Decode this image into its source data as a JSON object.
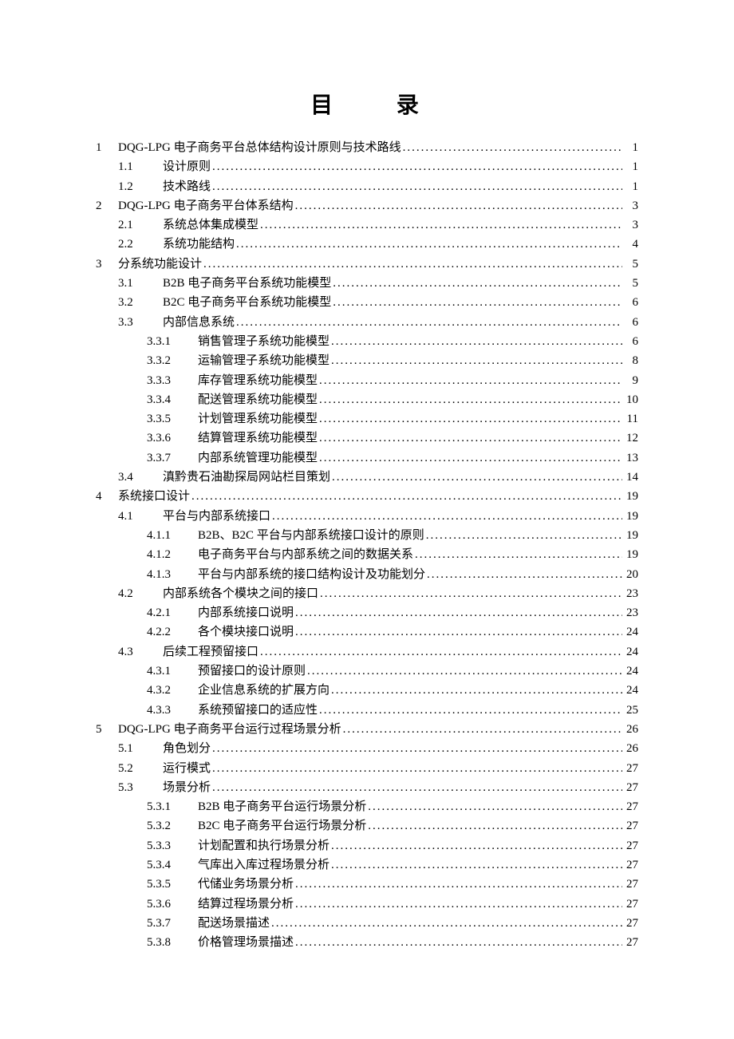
{
  "title": "目  录",
  "entries": [
    {
      "level": 1,
      "chapter": "1",
      "section": "",
      "sub": "",
      "label": "DQG-LPG 电子商务平台总体结构设计原则与技术路线",
      "page": "1"
    },
    {
      "level": 2,
      "chapter": "",
      "section": "1.1",
      "sub": "",
      "label": "设计原则",
      "page": "1"
    },
    {
      "level": 2,
      "chapter": "",
      "section": "1.2",
      "sub": "",
      "label": "技术路线",
      "page": "1"
    },
    {
      "level": 1,
      "chapter": "2",
      "section": "",
      "sub": "",
      "label": "DQG-LPG 电子商务平台体系结构",
      "page": "3"
    },
    {
      "level": 2,
      "chapter": "",
      "section": "2.1",
      "sub": "",
      "label": "系统总体集成模型",
      "page": "3"
    },
    {
      "level": 2,
      "chapter": "",
      "section": "2.2",
      "sub": "",
      "label": "系统功能结构",
      "page": "4"
    },
    {
      "level": 1,
      "chapter": "3",
      "section": "",
      "sub": "",
      "label": "分系统功能设计",
      "page": "5"
    },
    {
      "level": 2,
      "chapter": "",
      "section": "3.1",
      "sub": "",
      "label": "B2B 电子商务平台系统功能模型",
      "page": "5"
    },
    {
      "level": 2,
      "chapter": "",
      "section": "3.2",
      "sub": "",
      "label": "B2C 电子商务平台系统功能模型",
      "page": "6"
    },
    {
      "level": 2,
      "chapter": "",
      "section": "3.3",
      "sub": "",
      "label": "内部信息系统",
      "page": "6"
    },
    {
      "level": 3,
      "chapter": "",
      "section": "",
      "sub": "3.3.1",
      "label": "销售管理子系统功能模型",
      "page": "6"
    },
    {
      "level": 3,
      "chapter": "",
      "section": "",
      "sub": "3.3.2",
      "label": "运输管理子系统功能模型",
      "page": "8"
    },
    {
      "level": 3,
      "chapter": "",
      "section": "",
      "sub": "3.3.3",
      "label": "库存管理系统功能模型",
      "page": "9"
    },
    {
      "level": 3,
      "chapter": "",
      "section": "",
      "sub": "3.3.4",
      "label": "配送管理系统功能模型",
      "page": "10"
    },
    {
      "level": 3,
      "chapter": "",
      "section": "",
      "sub": "3.3.5",
      "label": "计划管理系统功能模型",
      "page": "11"
    },
    {
      "level": 3,
      "chapter": "",
      "section": "",
      "sub": "3.3.6",
      "label": "结算管理系统功能模型",
      "page": "12"
    },
    {
      "level": 3,
      "chapter": "",
      "section": "",
      "sub": "3.3.7",
      "label": "内部系统管理功能模型",
      "page": "13"
    },
    {
      "level": 2,
      "chapter": "",
      "section": "3.4",
      "sub": "",
      "label": "滇黔贵石油勘探局网站栏目策划",
      "page": "14"
    },
    {
      "level": 1,
      "chapter": "4",
      "section": "",
      "sub": "",
      "label": "系统接口设计",
      "page": "19"
    },
    {
      "level": 2,
      "chapter": "",
      "section": "4.1",
      "sub": "",
      "label": "平台与内部系统接口",
      "page": "19"
    },
    {
      "level": 3,
      "chapter": "",
      "section": "",
      "sub": "4.1.1",
      "label": "B2B、B2C 平台与内部系统接口设计的原则",
      "page": "19"
    },
    {
      "level": 3,
      "chapter": "",
      "section": "",
      "sub": "4.1.2",
      "label": "电子商务平台与内部系统之间的数据关系",
      "page": "19"
    },
    {
      "level": 3,
      "chapter": "",
      "section": "",
      "sub": "4.1.3",
      "label": "平台与内部系统的接口结构设计及功能划分",
      "page": "20"
    },
    {
      "level": 2,
      "chapter": "",
      "section": "4.2",
      "sub": "",
      "label": "内部系统各个模块之间的接口",
      "page": "23"
    },
    {
      "level": 3,
      "chapter": "",
      "section": "",
      "sub": "4.2.1",
      "label": "内部系统接口说明",
      "page": "23"
    },
    {
      "level": 3,
      "chapter": "",
      "section": "",
      "sub": "4.2.2",
      "label": "各个模块接口说明",
      "page": "24"
    },
    {
      "level": 2,
      "chapter": "",
      "section": "4.3",
      "sub": "",
      "label": "后续工程预留接口",
      "page": "24"
    },
    {
      "level": 3,
      "chapter": "",
      "section": "",
      "sub": "4.3.1",
      "label": "预留接口的设计原则",
      "page": "24"
    },
    {
      "level": 3,
      "chapter": "",
      "section": "",
      "sub": "4.3.2",
      "label": "企业信息系统的扩展方向",
      "page": "24"
    },
    {
      "level": 3,
      "chapter": "",
      "section": "",
      "sub": "4.3.3",
      "label": "系统预留接口的适应性",
      "page": "25"
    },
    {
      "level": 1,
      "chapter": "5",
      "section": "",
      "sub": "",
      "label": "DQG-LPG  电子商务平台运行过程场景分析",
      "page": "26"
    },
    {
      "level": 2,
      "chapter": "",
      "section": "5.1",
      "sub": "",
      "label": "角色划分",
      "page": "26"
    },
    {
      "level": 2,
      "chapter": "",
      "section": "5.2",
      "sub": "",
      "label": "运行模式",
      "page": "27"
    },
    {
      "level": 2,
      "chapter": "",
      "section": "5.3",
      "sub": "",
      "label": "场景分析",
      "page": "27"
    },
    {
      "level": 3,
      "chapter": "",
      "section": "",
      "sub": "5.3.1",
      "label": "B2B 电子商务平台运行场景分析",
      "page": "27"
    },
    {
      "level": 3,
      "chapter": "",
      "section": "",
      "sub": "5.3.2",
      "label": "B2C  电子商务平台运行场景分析",
      "page": "27"
    },
    {
      "level": 3,
      "chapter": "",
      "section": "",
      "sub": "5.3.3",
      "label": "计划配置和执行场景分析",
      "page": "27"
    },
    {
      "level": 3,
      "chapter": "",
      "section": "",
      "sub": "5.3.4",
      "label": "气库出入库过程场景分析",
      "page": "27"
    },
    {
      "level": 3,
      "chapter": "",
      "section": "",
      "sub": "5.3.5",
      "label": "代储业务场景分析",
      "page": "27"
    },
    {
      "level": 3,
      "chapter": "",
      "section": "",
      "sub": "5.3.6",
      "label": "结算过程场景分析",
      "page": "27"
    },
    {
      "level": 3,
      "chapter": "",
      "section": "",
      "sub": "5.3.7",
      "label": "配送场景描述",
      "page": "27"
    },
    {
      "level": 3,
      "chapter": "",
      "section": "",
      "sub": "5.3.8",
      "label": "价格管理场景描述",
      "page": "27"
    }
  ]
}
